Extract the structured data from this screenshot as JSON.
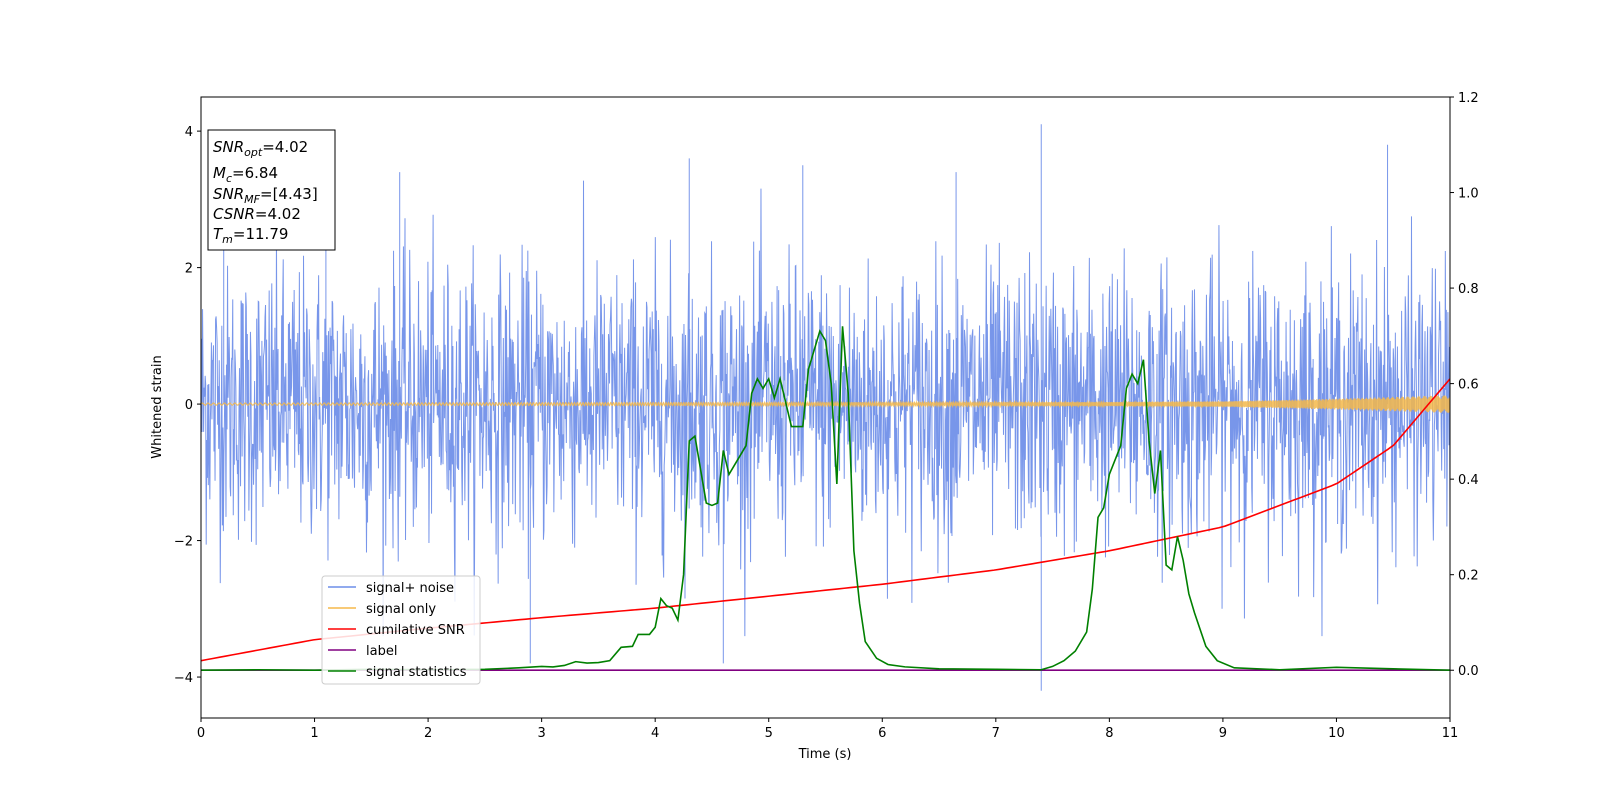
{
  "chart_data": {
    "type": "line",
    "xlabel": "Time (s)",
    "ylabel": "Whitened strain",
    "xlim": [
      0,
      11
    ],
    "ylim_left": [
      -4.6,
      4.5
    ],
    "ylim_right": [
      -0.1,
      1.2
    ],
    "x_ticks": [
      "0",
      "1",
      "2",
      "3",
      "4",
      "5",
      "6",
      "7",
      "8",
      "9",
      "10",
      "11"
    ],
    "y_left_ticks": [
      "4",
      "2",
      "0",
      "−2",
      "−4"
    ],
    "y_right_ticks": [
      "1.2",
      "1.0",
      "0.8",
      "0.6",
      "0.4",
      "0.2",
      "0.0"
    ],
    "grid": false,
    "legend_position": "lower-left",
    "annotation": {
      "snr_opt": {
        "sym": "SNR",
        "sub": "opt",
        "val": "=4.02"
      },
      "mc": {
        "sym": "M",
        "sub": "c",
        "val": "=6.84"
      },
      "snr_mf": {
        "sym": "SNR",
        "sub": "MF",
        "val": "=[4.43]"
      },
      "csnr": {
        "sym": "CSNR",
        "val": "=4.02"
      },
      "tm": {
        "sym": "T",
        "sub": "m",
        "val": "=11.79"
      }
    },
    "series": [
      {
        "name": "signal+ noise",
        "color": "#6d8de8",
        "axis": "left",
        "description": "dense noise, mostly within ±2.4, peaks to ~4.1 near t=7.4 and ~3.8 near t=10.4",
        "amplitude_typical": 1.0,
        "peaks": [
          [
            0.2,
            2.7
          ],
          [
            1.1,
            2.7
          ],
          [
            1.75,
            3.4
          ],
          [
            4.3,
            3.6
          ],
          [
            5.3,
            3.5
          ],
          [
            6.65,
            3.4
          ],
          [
            7.4,
            4.1
          ],
          [
            10.45,
            3.8
          ],
          [
            7.4,
            -4.2
          ],
          [
            4.6,
            -3.8
          ],
          [
            2.9,
            -3.8
          ]
        ]
      },
      {
        "name": "signal only",
        "color": "#f5b84a",
        "axis": "left",
        "envelope": [
          [
            0,
            0.015
          ],
          [
            8,
            0.03
          ],
          [
            9,
            0.04
          ],
          [
            10,
            0.08
          ],
          [
            11,
            0.13
          ]
        ]
      },
      {
        "name": "cumilative SNR",
        "color": "#ff0000",
        "axis": "right",
        "points": [
          [
            0,
            0.02
          ],
          [
            1,
            0.064
          ],
          [
            2,
            0.088
          ],
          [
            3,
            0.11
          ],
          [
            4,
            0.13
          ],
          [
            5,
            0.155
          ],
          [
            6,
            0.18
          ],
          [
            7,
            0.21
          ],
          [
            8,
            0.25
          ],
          [
            9,
            0.3
          ],
          [
            10,
            0.39
          ],
          [
            10.5,
            0.47
          ],
          [
            11,
            0.61
          ]
        ]
      },
      {
        "name": "label",
        "color": "#800080",
        "axis": "right",
        "points": [
          [
            0,
            0.0
          ],
          [
            11,
            0.0
          ]
        ]
      },
      {
        "name": "signal statistics",
        "color": "#008000",
        "axis": "right",
        "points": [
          [
            0,
            0.0
          ],
          [
            0.5,
            0.001
          ],
          [
            1.0,
            0.0
          ],
          [
            1.5,
            0.002
          ],
          [
            2.0,
            0.001
          ],
          [
            2.5,
            0.002
          ],
          [
            2.8,
            0.005
          ],
          [
            3.0,
            0.008
          ],
          [
            3.1,
            0.007
          ],
          [
            3.2,
            0.01
          ],
          [
            3.3,
            0.018
          ],
          [
            3.4,
            0.015
          ],
          [
            3.5,
            0.016
          ],
          [
            3.6,
            0.02
          ],
          [
            3.7,
            0.048
          ],
          [
            3.8,
            0.05
          ],
          [
            3.85,
            0.075
          ],
          [
            3.95,
            0.075
          ],
          [
            4.0,
            0.09
          ],
          [
            4.05,
            0.15
          ],
          [
            4.1,
            0.135
          ],
          [
            4.15,
            0.13
          ],
          [
            4.2,
            0.105
          ],
          [
            4.25,
            0.2
          ],
          [
            4.3,
            0.48
          ],
          [
            4.35,
            0.49
          ],
          [
            4.45,
            0.35
          ],
          [
            4.5,
            0.345
          ],
          [
            4.55,
            0.35
          ],
          [
            4.6,
            0.46
          ],
          [
            4.65,
            0.41
          ],
          [
            4.7,
            0.43
          ],
          [
            4.8,
            0.47
          ],
          [
            4.85,
            0.58
          ],
          [
            4.9,
            0.61
          ],
          [
            4.95,
            0.59
          ],
          [
            5.0,
            0.61
          ],
          [
            5.05,
            0.57
          ],
          [
            5.1,
            0.61
          ],
          [
            5.2,
            0.51
          ],
          [
            5.3,
            0.51
          ],
          [
            5.35,
            0.63
          ],
          [
            5.45,
            0.71
          ],
          [
            5.5,
            0.69
          ],
          [
            5.55,
            0.6
          ],
          [
            5.6,
            0.39
          ],
          [
            5.65,
            0.72
          ],
          [
            5.7,
            0.58
          ],
          [
            5.75,
            0.25
          ],
          [
            5.8,
            0.14
          ],
          [
            5.85,
            0.06
          ],
          [
            5.95,
            0.025
          ],
          [
            6.05,
            0.012
          ],
          [
            6.2,
            0.007
          ],
          [
            6.5,
            0.003
          ],
          [
            7.0,
            0.002
          ],
          [
            7.4,
            0.001
          ],
          [
            7.5,
            0.008
          ],
          [
            7.6,
            0.02
          ],
          [
            7.7,
            0.04
          ],
          [
            7.8,
            0.08
          ],
          [
            7.85,
            0.17
          ],
          [
            7.9,
            0.32
          ],
          [
            7.95,
            0.34
          ],
          [
            8.0,
            0.41
          ],
          [
            8.1,
            0.47
          ],
          [
            8.15,
            0.59
          ],
          [
            8.2,
            0.62
          ],
          [
            8.25,
            0.6
          ],
          [
            8.3,
            0.65
          ],
          [
            8.35,
            0.48
          ],
          [
            8.4,
            0.37
          ],
          [
            8.45,
            0.46
          ],
          [
            8.5,
            0.22
          ],
          [
            8.55,
            0.21
          ],
          [
            8.6,
            0.28
          ],
          [
            8.65,
            0.23
          ],
          [
            8.7,
            0.16
          ],
          [
            8.75,
            0.12
          ],
          [
            8.85,
            0.05
          ],
          [
            8.95,
            0.02
          ],
          [
            9.1,
            0.005
          ],
          [
            9.5,
            0.001
          ],
          [
            10.0,
            0.006
          ],
          [
            10.5,
            0.003
          ],
          [
            11.0,
            0.0
          ]
        ]
      }
    ]
  }
}
